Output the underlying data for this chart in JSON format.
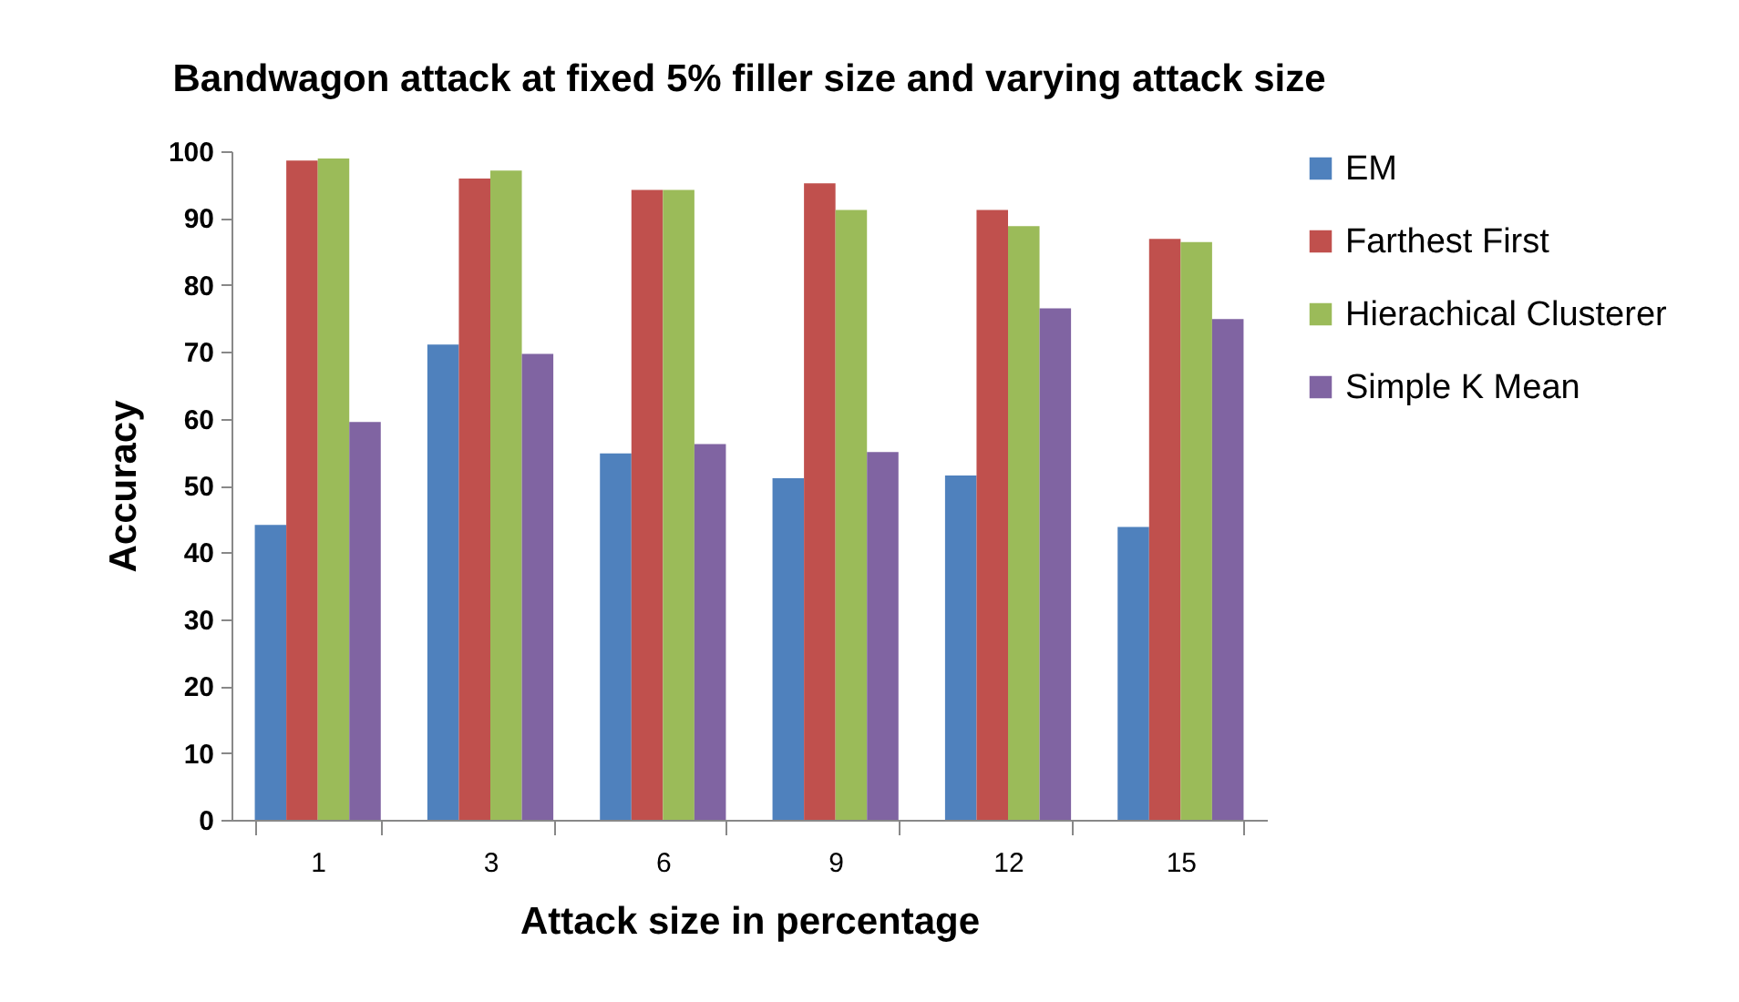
{
  "chart_data": {
    "type": "bar",
    "title": "Bandwagon attack at fixed 5% filler size and varying attack size",
    "xlabel": "Attack size in percentage",
    "ylabel": "Accuracy",
    "categories": [
      "1",
      "3",
      "6",
      "9",
      "12",
      "15"
    ],
    "series": [
      {
        "name": "EM",
        "color": "#4f81bd",
        "values": [
          44.1,
          71.1,
          54.8,
          51.1,
          51.5,
          43.8
        ]
      },
      {
        "name": "Farthest First",
        "color": "#c0504d",
        "values": [
          98.6,
          95.9,
          94.2,
          95.2,
          91.2,
          86.9
        ]
      },
      {
        "name": "Hierachical Clusterer",
        "color": "#9bbb59",
        "values": [
          98.9,
          97.1,
          94.2,
          91.2,
          88.8,
          86.4
        ]
      },
      {
        "name": "Simple K Mean",
        "color": "#8064a2",
        "values": [
          59.5,
          69.7,
          56.2,
          55.0,
          76.5,
          74.9
        ]
      }
    ],
    "ylim": [
      0,
      100
    ],
    "yticks": [
      0,
      10,
      20,
      30,
      40,
      50,
      60,
      70,
      80,
      90,
      100
    ],
    "grid": false,
    "legend": "right"
  }
}
